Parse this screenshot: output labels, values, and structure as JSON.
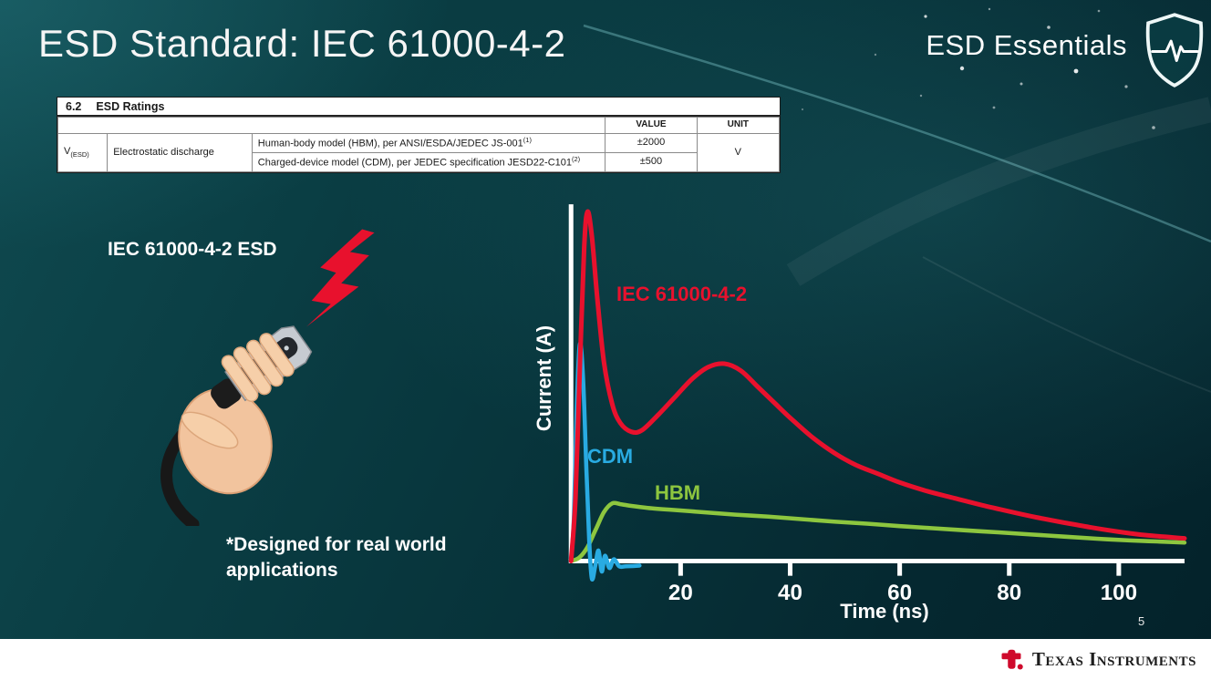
{
  "slide": {
    "title": "ESD Standard: IEC 61000-4-2",
    "brand": "ESD Essentials",
    "page_number": "5",
    "footer_brand": "Texas Instruments"
  },
  "ratings_table": {
    "section_number": "6.2",
    "section_title": "ESD Ratings",
    "value_header": "VALUE",
    "unit_header": "UNIT",
    "symbol": "V",
    "symbol_sub": "(ESD)",
    "parameter": "Electrostatic discharge",
    "rows": [
      {
        "description": "Human-body model (HBM), per ANSI/ESDA/JEDEC JS-001",
        "footnote": "(1)",
        "value": "±2000"
      },
      {
        "description": "Charged-device model (CDM), per JEDEC specification JESD22-C101",
        "footnote": "(2)",
        "value": "±500"
      }
    ],
    "unit": "V"
  },
  "illustration": {
    "label": "IEC 61000-4-2 ESD",
    "note": "*Designed for real world applications"
  },
  "chart_data": {
    "type": "line",
    "title": "",
    "xlabel": "Time (ns)",
    "ylabel": "Current (A)",
    "xlim": [
      0,
      112
    ],
    "ylim_relative": [
      -0.08,
      1.05
    ],
    "xticks": [
      20,
      40,
      60,
      80,
      100
    ],
    "yticks": [],
    "grid": false,
    "legend": "inline-labels",
    "axis_color": "#ffffff",
    "series": [
      {
        "name": "IEC 61000-4-2",
        "color": "#e8112d",
        "width": 5,
        "points": [
          [
            0,
            0
          ],
          [
            0.8,
            0.18
          ],
          [
            1.6,
            0.55
          ],
          [
            2.4,
            0.9
          ],
          [
            3,
            1.0
          ],
          [
            3.8,
            0.93
          ],
          [
            4.8,
            0.75
          ],
          [
            6,
            0.57
          ],
          [
            7.5,
            0.45
          ],
          [
            9,
            0.395
          ],
          [
            11,
            0.37
          ],
          [
            13,
            0.375
          ],
          [
            16,
            0.42
          ],
          [
            19,
            0.47
          ],
          [
            22,
            0.52
          ],
          [
            25,
            0.555
          ],
          [
            28,
            0.565
          ],
          [
            31,
            0.545
          ],
          [
            34,
            0.5
          ],
          [
            37,
            0.455
          ],
          [
            40,
            0.41
          ],
          [
            44,
            0.355
          ],
          [
            48,
            0.31
          ],
          [
            52,
            0.275
          ],
          [
            56,
            0.25
          ],
          [
            60,
            0.225
          ],
          [
            65,
            0.2
          ],
          [
            70,
            0.18
          ],
          [
            75,
            0.16
          ],
          [
            80,
            0.142
          ],
          [
            85,
            0.125
          ],
          [
            90,
            0.11
          ],
          [
            95,
            0.096
          ],
          [
            100,
            0.084
          ],
          [
            105,
            0.074
          ],
          [
            112,
            0.065
          ]
        ]
      },
      {
        "name": "CDM",
        "color": "#29abe2",
        "width": 4.5,
        "points": [
          [
            0,
            0
          ],
          [
            0.5,
            0.12
          ],
          [
            1.0,
            0.42
          ],
          [
            1.6,
            0.62
          ],
          [
            2.2,
            0.52
          ],
          [
            2.8,
            0.26
          ],
          [
            3.3,
            0.06
          ],
          [
            3.8,
            -0.05
          ],
          [
            4.4,
            -0.015
          ],
          [
            5.0,
            0.03
          ],
          [
            5.6,
            -0.03
          ],
          [
            6.2,
            0.015
          ],
          [
            7.0,
            -0.02
          ],
          [
            7.8,
            0.005
          ],
          [
            8.8,
            -0.015
          ],
          [
            10,
            -0.015
          ],
          [
            12.5,
            -0.013
          ]
        ]
      },
      {
        "name": "HBM",
        "color": "#8dc63f",
        "width": 4.5,
        "points": [
          [
            0,
            0
          ],
          [
            1.5,
            0.01
          ],
          [
            3,
            0.04
          ],
          [
            4.5,
            0.09
          ],
          [
            6,
            0.14
          ],
          [
            7.5,
            0.165
          ],
          [
            9,
            0.163
          ],
          [
            11,
            0.158
          ],
          [
            14,
            0.152
          ],
          [
            18,
            0.147
          ],
          [
            24,
            0.14
          ],
          [
            30,
            0.133
          ],
          [
            36,
            0.127
          ],
          [
            42,
            0.12
          ],
          [
            48,
            0.113
          ],
          [
            54,
            0.107
          ],
          [
            60,
            0.1
          ],
          [
            66,
            0.094
          ],
          [
            72,
            0.088
          ],
          [
            78,
            0.082
          ],
          [
            84,
            0.076
          ],
          [
            90,
            0.07
          ],
          [
            96,
            0.064
          ],
          [
            102,
            0.059
          ],
          [
            107,
            0.056
          ],
          [
            112,
            0.053
          ]
        ]
      }
    ]
  }
}
